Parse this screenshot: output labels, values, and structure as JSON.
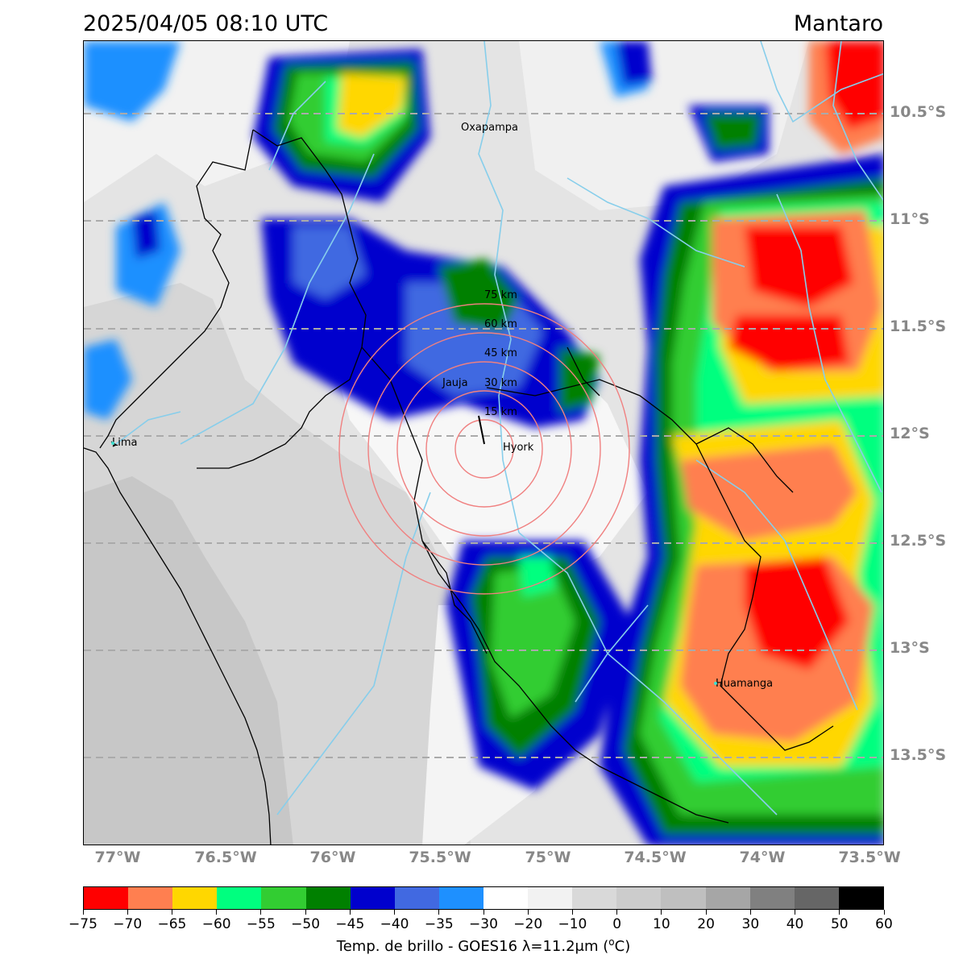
{
  "header": {
    "timestamp": "2025/04/05 08:10 UTC",
    "region": "Mantaro"
  },
  "map": {
    "lat_labels": [
      "10.5°S",
      "11°S",
      "11.5°S",
      "12°S",
      "12.5°S",
      "13°S",
      "13.5°S"
    ],
    "lon_labels": [
      "77°W",
      "76.5°W",
      "76°W",
      "75.5°W",
      "75°W",
      "74.5°W",
      "74°W",
      "73.5°W"
    ],
    "places": [
      {
        "name": "Oxapampa",
        "icon": "place-label"
      },
      {
        "name": "Lima",
        "icon": "place-label"
      },
      {
        "name": "Hyork",
        "icon": "radar-site"
      },
      {
        "name": "Huamanga",
        "icon": "place-label"
      },
      {
        "name": "Jauja",
        "icon": "place-label"
      }
    ],
    "range_rings": [
      "15 km",
      "30 km",
      "45 km",
      "60 km",
      "75 km"
    ],
    "gridline_color": "#aaaaaa",
    "ring_color": "#f08080",
    "river_color": "#87ceeb",
    "border_color": "#000000"
  },
  "colorbar": {
    "title_prefix": "Temp. de brillo - GOES16 λ=11.2μm (",
    "title_unit": "o",
    "title_suffix": "C)",
    "tick_labels": [
      "−75",
      "−70",
      "−65",
      "−60",
      "−55",
      "−50",
      "−45",
      "−40",
      "−35",
      "−30",
      "−20",
      "−10",
      "0",
      "10",
      "20",
      "30",
      "40",
      "50",
      "60"
    ],
    "colors": [
      "#ff0000",
      "#ff7f50",
      "#ffd700",
      "#00ff7f",
      "#32cd32",
      "#008000",
      "#0000cd",
      "#4169e1",
      "#1e90ff",
      "#ffffff",
      "#f2f2f2",
      "#d9d9d9",
      "#cccccc",
      "#bfbfbf",
      "#a6a6a6",
      "#808080",
      "#666666",
      "#000000"
    ]
  }
}
